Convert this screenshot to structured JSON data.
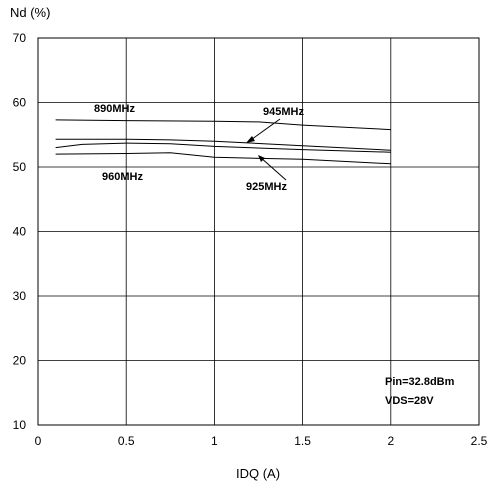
{
  "chart_data": {
    "type": "line",
    "title": "",
    "xlabel": "IDQ (A)",
    "ylabel": "Nd (%)",
    "xlim": [
      0,
      2.5
    ],
    "ylim": [
      10,
      70
    ],
    "xticks": [
      0,
      0.5,
      1,
      1.5,
      2,
      2.5
    ],
    "xtick_labels": [
      "0",
      "0.5",
      "1",
      "1.5",
      "2",
      "2.5"
    ],
    "yticks": [
      10,
      20,
      30,
      40,
      50,
      60,
      70
    ],
    "ytick_labels": [
      "10",
      "20",
      "30",
      "40",
      "50",
      "60",
      "70"
    ],
    "grid": true,
    "series": [
      {
        "name": "890MHz",
        "x": [
          0.1,
          0.5,
          1.0,
          1.25,
          1.5,
          2.0
        ],
        "y": [
          57.3,
          57.2,
          57.1,
          57.0,
          56.5,
          55.8
        ]
      },
      {
        "name": "945MHz",
        "x": [
          0.1,
          0.5,
          0.75,
          1.0,
          1.5,
          2.0
        ],
        "y": [
          54.3,
          54.3,
          54.2,
          54.0,
          53.3,
          52.6
        ]
      },
      {
        "name": "925MHz",
        "x": [
          0.1,
          0.25,
          0.5,
          0.75,
          1.0,
          1.5,
          2.0
        ],
        "y": [
          53.0,
          53.5,
          53.7,
          53.6,
          53.2,
          52.7,
          52.3
        ]
      },
      {
        "name": "960MHz",
        "x": [
          0.1,
          0.5,
          0.75,
          1.0,
          1.5,
          2.0
        ],
        "y": [
          52.0,
          52.1,
          52.2,
          51.5,
          51.2,
          50.5
        ]
      }
    ],
    "annotations": [
      "890MHz",
      "945MHz",
      "925MHz",
      "960MHz",
      "Pin=32.8dBm",
      "VDS=28V"
    ]
  }
}
